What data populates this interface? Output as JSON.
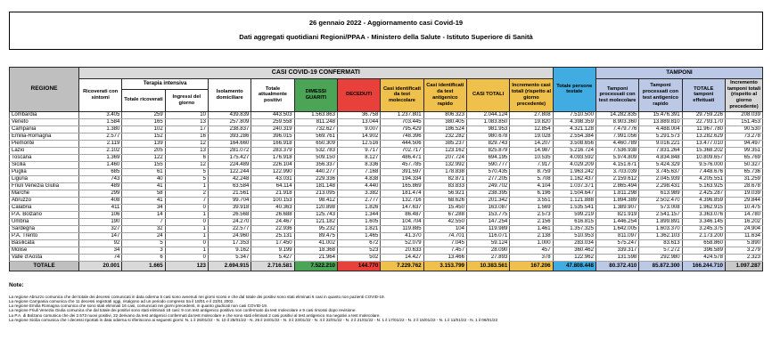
{
  "title": {
    "line1": "26 gennaio 2022 - Aggiornamento casi Covid-19",
    "line2": "Dati aggregati quotidiani Regioni/PPAA - Ministero della Salute - Istituto Superiore di Sanità"
  },
  "colors": {
    "green": "#4CA456",
    "red": "#E8413C",
    "gold": "#EFC04B",
    "blue": "#41ACE1",
    "lavender": "#BCC9E6",
    "gray_light": "#D9D9D9",
    "gray_mid": "#BFBFBF",
    "gray_mid2": "#C9C9C9"
  },
  "table": {
    "corner": "REGIONE",
    "groups": {
      "casi": "CASI COVID-19 CONFERMATI",
      "tamponi": "TAMPONI",
      "terapia_intensiva": "Terapia intensiva"
    },
    "headers": {
      "ricoverati": "Ricoverati con sintomi",
      "ti_totale": "Totale ricoverati",
      "ti_ingressi": "Ingressi del giorno",
      "isolamento": "Isolamento domiciliare",
      "positivi": "Totale attualmente positivi",
      "guariti": "DIMESSI GUARITI",
      "deceduti": "DECEDUTI",
      "casi_molecolare": "Casi identificati da test molecolare",
      "casi_antigenico": "Casi identificati da test antigenico rapido",
      "casi_totali": "CASI TOTALI",
      "incremento_casi": "Incremento casi totali (rispetto al giorno precedente)",
      "persone_testate": "Totale persone testate",
      "tamponi_molecolare": "Tamponi processati con test molecolare",
      "tamponi_antigenico": "Tamponi processati con test antigenico rapido",
      "tamponi_totale": "TOTALE tamponi effettuati",
      "incremento_tamponi": "Incremento tamponi totali (rispetto al giorno precedente)"
    },
    "rows": [
      {
        "region": "Lombardia",
        "values": [
          "3.405",
          "259",
          "10",
          "439.839",
          "443.503",
          "1.563.863",
          "36.758",
          "1.237.801",
          "806.323",
          "2.044.124",
          "27.808",
          "7.510.500",
          "14.282.835",
          "15.476.391",
          "29.759.226",
          "208.039"
        ]
      },
      {
        "region": "Veneto",
        "values": [
          "1.584",
          "165",
          "13",
          "257.809",
          "259.558",
          "811.248",
          "13.044",
          "703.445",
          "380.405",
          "1.083.850",
          "19.820",
          "4.398.359",
          "8.903.360",
          "13.889.810",
          "22.793.170",
          "151.453"
        ]
      },
      {
        "region": "Campania",
        "values": [
          "1.380",
          "102",
          "17",
          "238.837",
          "240.319",
          "732.627",
          "9.007",
          "795.429",
          "186.524",
          "981.953",
          "12.854",
          "4.321.128",
          "7.479.776",
          "4.488.004",
          "11.967.780",
          "90.530"
        ]
      },
      {
        "region": "Emilia-Romagna",
        "values": [
          "2.577",
          "152",
          "16",
          "393.286",
          "396.015",
          "569.761",
          "14.902",
          "748.396",
          "232.282",
          "980.678",
          "19.028",
          "2.554.384",
          "7.991.056",
          "5.291.573",
          "13.282.629",
          "73.278"
        ]
      },
      {
        "region": "Piemonte",
        "values": [
          "2.119",
          "139",
          "12",
          "164.660",
          "166.918",
          "650.309",
          "12.516",
          "444.506",
          "385.237",
          "829.743",
          "14.207",
          "3.508.656",
          "4.460.789",
          "9.016.221",
          "13.477.010",
          "94.497"
        ]
      },
      {
        "region": "Lazio",
        "values": [
          "2.102",
          "205",
          "13",
          "281.072",
          "283.379",
          "532.783",
          "9.717",
          "702.717",
          "123.162",
          "825.879",
          "14.987",
          "5.216.724",
          "7.536.938",
          "7.831.264",
          "15.368.202",
          "99.351"
        ]
      },
      {
        "region": "Toscana",
        "values": [
          "1.369",
          "122",
          "6",
          "175.427",
          "176.918",
          "509.150",
          "8.127",
          "486.471",
          "207.724",
          "694.195",
          "10.535",
          "4.093.592",
          "5.974.809",
          "4.834.848",
          "10.809.657",
          "65.769"
        ]
      },
      {
        "region": "Sicilia",
        "values": [
          "1.460",
          "155",
          "12",
          "224.489",
          "226.104",
          "356.337",
          "8.336",
          "457.785",
          "132.992",
          "590.777",
          "7.917",
          "4.029.209",
          "4.151.671",
          "5.424.329",
          "9.576.000",
          "50.327"
        ]
      },
      {
        "region": "Puglia",
        "values": [
          "685",
          "61",
          "5",
          "122.244",
          "122.990",
          "440.277",
          "7.168",
          "391.597",
          "178.838",
          "570.435",
          "8.759",
          "1.963.242",
          "3.703.039",
          "3.745.637",
          "7.448.676",
          "65.736"
        ]
      },
      {
        "region": "Liguria",
        "values": [
          "743",
          "40",
          "5",
          "42.248",
          "43.031",
          "229.336",
          "4.838",
          "194.334",
          "82.871",
          "277.205",
          "5.708",
          "1.162.437",
          "2.159.612",
          "2.045.939",
          "4.205.551",
          "31.259"
        ]
      },
      {
        "region": "Friuli Venezia Giulia",
        "values": [
          "489",
          "41",
          "1",
          "63.584",
          "64.114",
          "181.148",
          "4.440",
          "165.869",
          "83.833",
          "249.702",
          "4.104",
          "1.037.371",
          "2.865.494",
          "2.298.431",
          "5.163.925",
          "28.678"
        ]
      },
      {
        "region": "Marche",
        "values": [
          "299",
          "58",
          "2",
          "21.561",
          "21.918",
          "213.095",
          "3.382",
          "181.474",
          "56.921",
          "238.395",
          "6.196",
          "1.504.647",
          "1.811.298",
          "613.989",
          "2.425.287",
          "19.039"
        ]
      },
      {
        "region": "Abruzzo",
        "values": [
          "408",
          "41",
          "7",
          "99.704",
          "100.153",
          "98.412",
          "2.777",
          "132.716",
          "68.626",
          "201.342",
          "3.551",
          "1.121.888",
          "1.894.389",
          "2.502.470",
          "4.396.859",
          "29.844"
        ]
      },
      {
        "region": "Calabria",
        "values": [
          "411",
          "34",
          "0",
          "39.918",
          "40.363",
          "120.898",
          "1.826",
          "147.637",
          "15.450",
          "163.087",
          "1.569",
          "1.535.541",
          "1.389.907",
          "573.008",
          "1.962.915",
          "10.475"
        ]
      },
      {
        "region": "P.A. Bolzano",
        "values": [
          "106",
          "14",
          "1",
          "26.568",
          "26.688",
          "125.743",
          "1.344",
          "86.487",
          "67.288",
          "153.775",
          "2.573",
          "599.219",
          "821.919",
          "2.541.157",
          "3.363.076",
          "14.780"
        ]
      },
      {
        "region": "Umbria",
        "values": [
          "190",
          "7",
          "0",
          "24.270",
          "24.467",
          "121.182",
          "1.605",
          "104.704",
          "42.550",
          "147.254",
          "2.156",
          "616.815",
          "1.446.254",
          "1.899.891",
          "3.346.145",
          "16.202"
        ]
      },
      {
        "region": "Sardegna",
        "values": [
          "327",
          "32",
          "1",
          "22.577",
          "22.936",
          "95.232",
          "1.821",
          "119.885",
          "104",
          "119.989",
          "1.461",
          "1.357.325",
          "1.642.005",
          "1.603.370",
          "3.245.375",
          "24.904"
        ]
      },
      {
        "region": "P.A. Trento",
        "values": [
          "147",
          "24",
          "1",
          "24.960",
          "25.131",
          "89.475",
          "1.465",
          "41.370",
          "74.701",
          "116.071",
          "2.138",
          "510.953",
          "811.097",
          "1.362.103",
          "2.173.200",
          "11.634"
        ]
      },
      {
        "region": "Basilicata",
        "values": [
          "92",
          "5",
          "0",
          "17.353",
          "17.450",
          "41.002",
          "672",
          "52.079",
          "7.045",
          "59.124",
          "1.000",
          "283.034",
          "575.247",
          "83.613",
          "658.860",
          "5.890"
        ]
      },
      {
        "region": "Molise",
        "values": [
          "34",
          "3",
          "1",
          "9.162",
          "9.199",
          "18.368",
          "523",
          "20.633",
          "7.457",
          "28.090",
          "457",
          "360.462",
          "339.317",
          "57.272",
          "396.589",
          "3.279"
        ]
      },
      {
        "region": "Valle d'Aosta",
        "values": [
          "74",
          "6",
          "0",
          "5.347",
          "5.427",
          "21.964",
          "502",
          "14.427",
          "13.466",
          "27.893",
          "378",
          "122.962",
          "131.598",
          "292.980",
          "424.578",
          "2.323"
        ]
      }
    ],
    "totale": {
      "label": "TOTALE",
      "values": [
        "20.001",
        "1.665",
        "123",
        "2.694.915",
        "2.716.581",
        "7.522.210",
        "144.770",
        "7.229.762",
        "3.153.799",
        "10.383.561",
        "167.206",
        "47.808.448",
        "80.372.410",
        "85.872.300",
        "166.244.710",
        "1.097.287"
      ]
    }
  },
  "notes": {
    "title": "Note:",
    "items": [
      "La regione Abruzzo comunica che del totale dei decessi comunicati in data odierna 5 casi sono avvenuti nei giorni scorsi e che dal totale dei positivi sono stati eliminati 6 casi in quanto non pazienti COVID-19.",
      "La regione Campania comunica che 11 decessi registrati oggi, risalgono ad un periodo compreso tra il 18/01 e il 23/01 2002.",
      "La regione Emilia Romagna comunica che sono stati eliminati 16 casi, comunicati nei giorni precedenti, in quanto giudicati non casi COVID-19.",
      "La regione Friuli Venezia Giulia comunica che dal totale dei positivi sono stati eliminati 18 casi: 9 con test antigenico positivo non confermato da test molecolare e 9 casi rimossi dopo revisione.",
      "La P.A. di Bolzano comunica che dei 2.573 nuovi positivi, 22 derivano da test antigenici confermati da test molecolare e che sono stati eliminati 2 casi positivi al test antigenico ma negativi a test molecolare.",
      "La regione Sicilia comunica che i decessi riportati in data odierna si riferiscono ai seguenti giorni: N. 1 il 26/01/22 - N. 10 il 25/01/22 - N. 26 il 24/01/22 - N. 3 il 23/01/22 - N. 4 il 22/01/22 - N. 2 il 21/01/22 - N. 1 il 17/01/22 - N. 2 il 15/01/22 - N. 1 il 11/01/22 - N. 1 il 06/01/22"
    ]
  }
}
